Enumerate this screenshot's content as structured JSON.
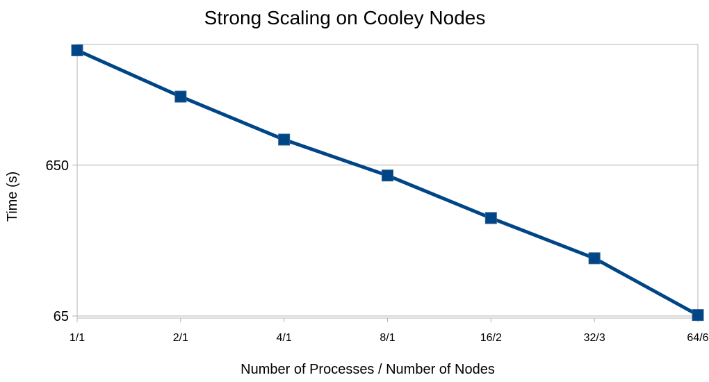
{
  "chart_data": {
    "type": "line",
    "title": "Strong Scaling on Cooley Nodes",
    "xlabel": "Number of Processes / Number of Nodes",
    "ylabel": "Time (s)",
    "y_scale": "log",
    "ylim": [
      63,
      4100
    ],
    "yticks": [
      {
        "value": 65,
        "label": "65"
      },
      {
        "value": 650,
        "label": "650"
      }
    ],
    "grid": true,
    "legend": "none",
    "categories": [
      "1/1",
      "2/1",
      "4/1",
      "8/1",
      "16/2",
      "32/3",
      "64/6"
    ],
    "series": [
      {
        "color": "#004586",
        "marker": "square",
        "values": [
          3750,
          1850,
          960,
          555,
          290,
          157,
          66
        ]
      }
    ]
  }
}
